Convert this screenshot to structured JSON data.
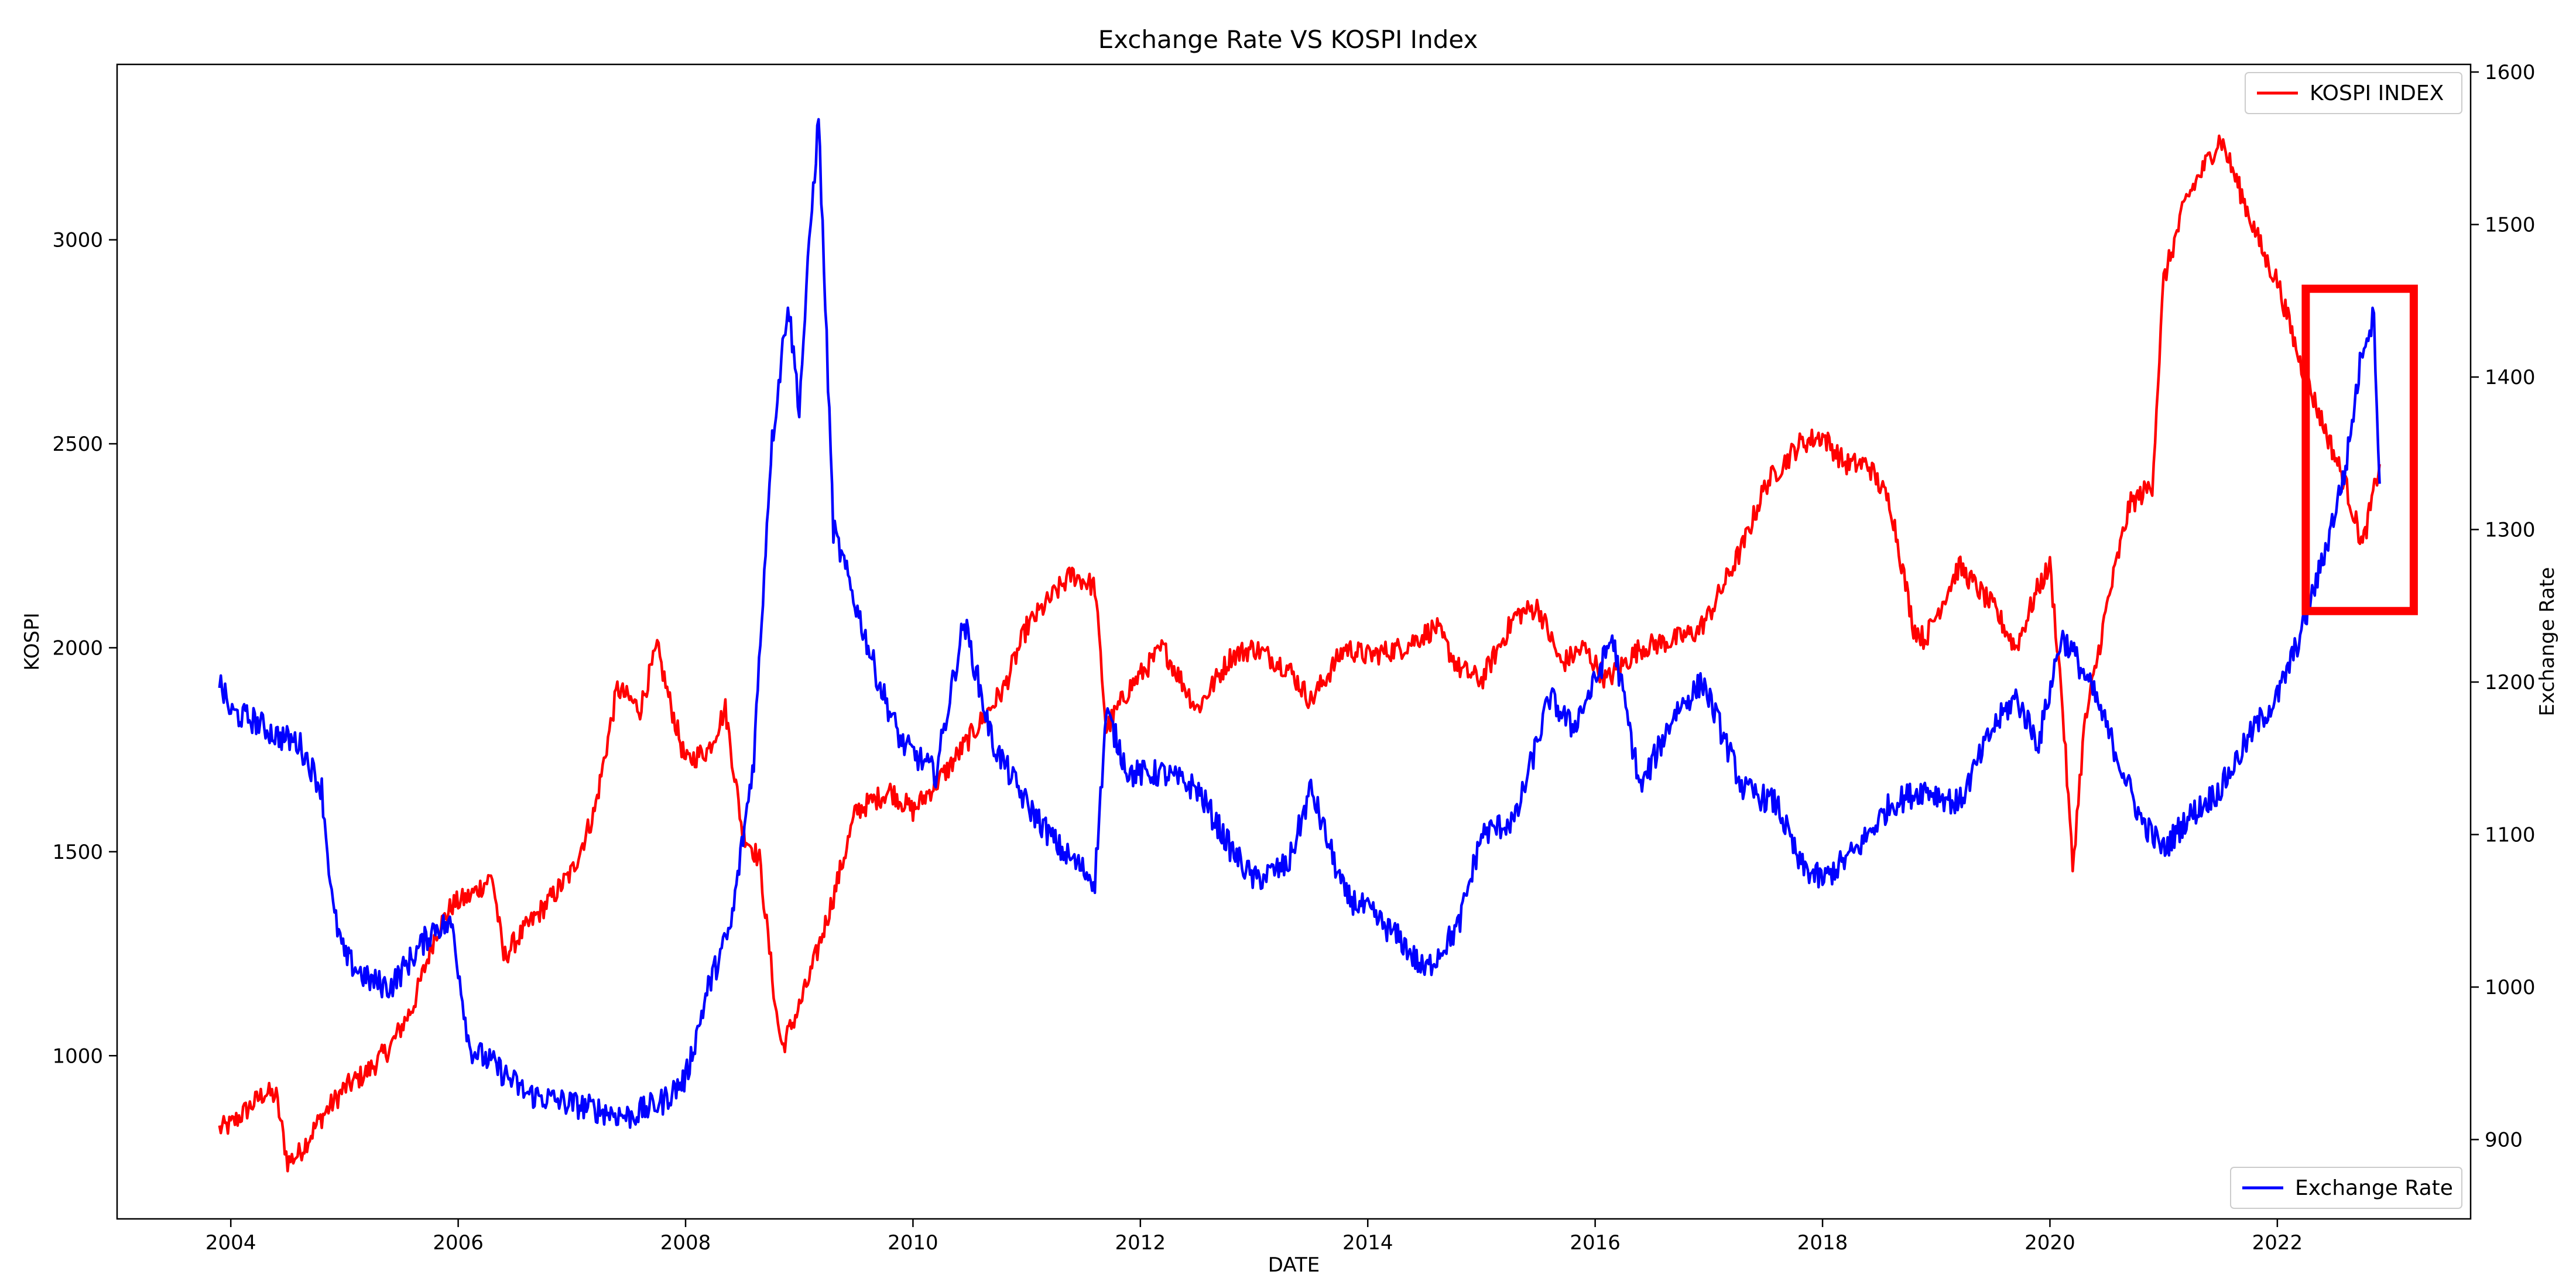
{
  "chart_data": {
    "type": "line",
    "title": "Exchange Rate VS KOSPI Index",
    "xlabel": "DATE",
    "ylabel_left": "KOSPI",
    "ylabel_right": "Exchange Rate",
    "xlim": [
      2003.0,
      2023.7
    ],
    "ylim_left": [
      600,
      3430
    ],
    "ylim_right": [
      848,
      1605
    ],
    "xticks": [
      2004,
      2006,
      2008,
      2010,
      2012,
      2014,
      2016,
      2018,
      2020,
      2022
    ],
    "xtick_labels": [
      "2004",
      "2006",
      "2008",
      "2010",
      "2012",
      "2014",
      "2016",
      "2018",
      "2020",
      "2022"
    ],
    "yticks_left": [
      1000,
      1500,
      2000,
      2500,
      3000
    ],
    "ytick_labels_left": [
      "1000",
      "1500",
      "2000",
      "2500",
      "3000"
    ],
    "yticks_right": [
      900,
      1000,
      1100,
      1200,
      1300,
      1400,
      1500,
      1600
    ],
    "ytick_labels_right": [
      "900",
      "1000",
      "1100",
      "1200",
      "1300",
      "1400",
      "1500",
      "1600"
    ],
    "grid": false,
    "series": [
      {
        "name": "KOSPI INDEX",
        "axis": "left",
        "color": "#ff0000",
        "legend_position": "top-right",
        "x": [
          2003.9,
          2004.0,
          2004.3,
          2004.4,
          2004.5,
          2004.6,
          2004.8,
          2005.0,
          2005.2,
          2005.4,
          2005.6,
          2005.8,
          2005.95,
          2006.1,
          2006.3,
          2006.4,
          2006.5,
          2006.8,
          2007.0,
          2007.2,
          2007.4,
          2007.6,
          2007.75,
          2007.85,
          2008.0,
          2008.2,
          2008.35,
          2008.5,
          2008.65,
          2008.8,
          2008.85,
          2009.0,
          2009.1,
          2009.3,
          2009.5,
          2009.8,
          2010.0,
          2010.3,
          2010.5,
          2010.8,
          2011.0,
          2011.3,
          2011.4,
          2011.6,
          2011.7,
          2011.9,
          2012.2,
          2012.5,
          2012.8,
          2013.0,
          2013.3,
          2013.5,
          2013.8,
          2014.0,
          2014.3,
          2014.6,
          2014.8,
          2015.0,
          2015.3,
          2015.5,
          2015.7,
          2015.9,
          2016.1,
          2016.4,
          2016.7,
          2016.9,
          2017.0,
          2017.3,
          2017.5,
          2017.8,
          2018.0,
          2018.2,
          2018.4,
          2018.6,
          2018.8,
          2018.9,
          2019.2,
          2019.5,
          2019.7,
          2019.9,
          2020.0,
          2020.1,
          2020.2,
          2020.3,
          2020.5,
          2020.7,
          2020.9,
          2021.0,
          2021.2,
          2021.5,
          2021.7,
          2021.9,
          2022.0,
          2022.2,
          2022.4,
          2022.6,
          2022.75,
          2022.9
        ],
        "values": [
          820,
          830,
          910,
          900,
          740,
          760,
          850,
          920,
          960,
          1020,
          1120,
          1300,
          1370,
          1390,
          1440,
          1240,
          1280,
          1380,
          1450,
          1600,
          1900,
          1850,
          2000,
          1880,
          1720,
          1750,
          1850,
          1550,
          1480,
          1100,
          1020,
          1120,
          1200,
          1390,
          1600,
          1650,
          1600,
          1700,
          1780,
          1900,
          2050,
          2150,
          2180,
          2150,
          1800,
          1900,
          2000,
          1850,
          1980,
          2000,
          1950,
          1870,
          2000,
          1980,
          2000,
          2050,
          1950,
          1920,
          2080,
          2100,
          1960,
          2000,
          1920,
          2000,
          2020,
          2040,
          2080,
          2250,
          2400,
          2500,
          2520,
          2450,
          2450,
          2350,
          2050,
          2020,
          2200,
          2100,
          2000,
          2150,
          2200,
          1900,
          1460,
          1800,
          2100,
          2350,
          2400,
          2900,
          3100,
          3250,
          3100,
          2950,
          2900,
          2700,
          2550,
          2400,
          2250,
          2450
        ]
      },
      {
        "name": "Exchange Rate",
        "axis": "right",
        "color": "#0000ff",
        "legend_position": "bottom-right",
        "x": [
          2003.9,
          2004.0,
          2004.2,
          2004.4,
          2004.6,
          2004.8,
          2004.9,
          2005.0,
          2005.2,
          2005.4,
          2005.6,
          2005.8,
          2005.95,
          2006.1,
          2006.3,
          2006.6,
          2006.9,
          2007.2,
          2007.5,
          2007.8,
          2008.0,
          2008.2,
          2008.4,
          2008.6,
          2008.75,
          2008.9,
          2009.0,
          2009.1,
          2009.17,
          2009.3,
          2009.5,
          2009.7,
          2009.9,
          2010.2,
          2010.35,
          2010.45,
          2010.7,
          2011.0,
          2011.3,
          2011.6,
          2011.7,
          2011.9,
          2012.2,
          2012.5,
          2012.8,
          2013.0,
          2013.3,
          2013.5,
          2013.8,
          2014.0,
          2014.3,
          2014.5,
          2014.8,
          2015.0,
          2015.3,
          2015.6,
          2015.8,
          2016.0,
          2016.15,
          2016.4,
          2016.7,
          2016.95,
          2017.3,
          2017.6,
          2017.8,
          2018.0,
          2018.3,
          2018.6,
          2018.9,
          2019.2,
          2019.5,
          2019.7,
          2019.9,
          2020.1,
          2020.2,
          2020.4,
          2020.6,
          2020.8,
          2021.0,
          2021.2,
          2021.5,
          2021.8,
          2022.0,
          2022.2,
          2022.4,
          2022.6,
          2022.75,
          2022.85,
          2022.9
        ],
        "values": [
          1200,
          1180,
          1175,
          1165,
          1160,
          1130,
          1050,
          1020,
          1005,
          1000,
          1020,
          1040,
          1040,
          960,
          950,
          930,
          925,
          920,
          915,
          925,
          940,
          1000,
          1040,
          1150,
          1350,
          1450,
          1380,
          1500,
          1570,
          1300,
          1250,
          1200,
          1160,
          1140,
          1200,
          1240,
          1160,
          1120,
          1090,
          1070,
          1180,
          1140,
          1140,
          1130,
          1090,
          1070,
          1080,
          1130,
          1060,
          1050,
          1030,
          1010,
          1040,
          1100,
          1110,
          1190,
          1170,
          1200,
          1230,
          1130,
          1180,
          1200,
          1130,
          1120,
          1080,
          1070,
          1090,
          1120,
          1130,
          1120,
          1170,
          1190,
          1160,
          1230,
          1220,
          1190,
          1150,
          1110,
          1090,
          1110,
          1130,
          1170,
          1190,
          1230,
          1280,
          1340,
          1420,
          1440,
          1330
        ]
      }
    ],
    "annotations": [
      {
        "type": "rectangle",
        "color": "#ff0000",
        "x_range": [
          2022.25,
          2023.2
        ],
        "y_range_left": [
          2090,
          2880
        ]
      }
    ]
  }
}
